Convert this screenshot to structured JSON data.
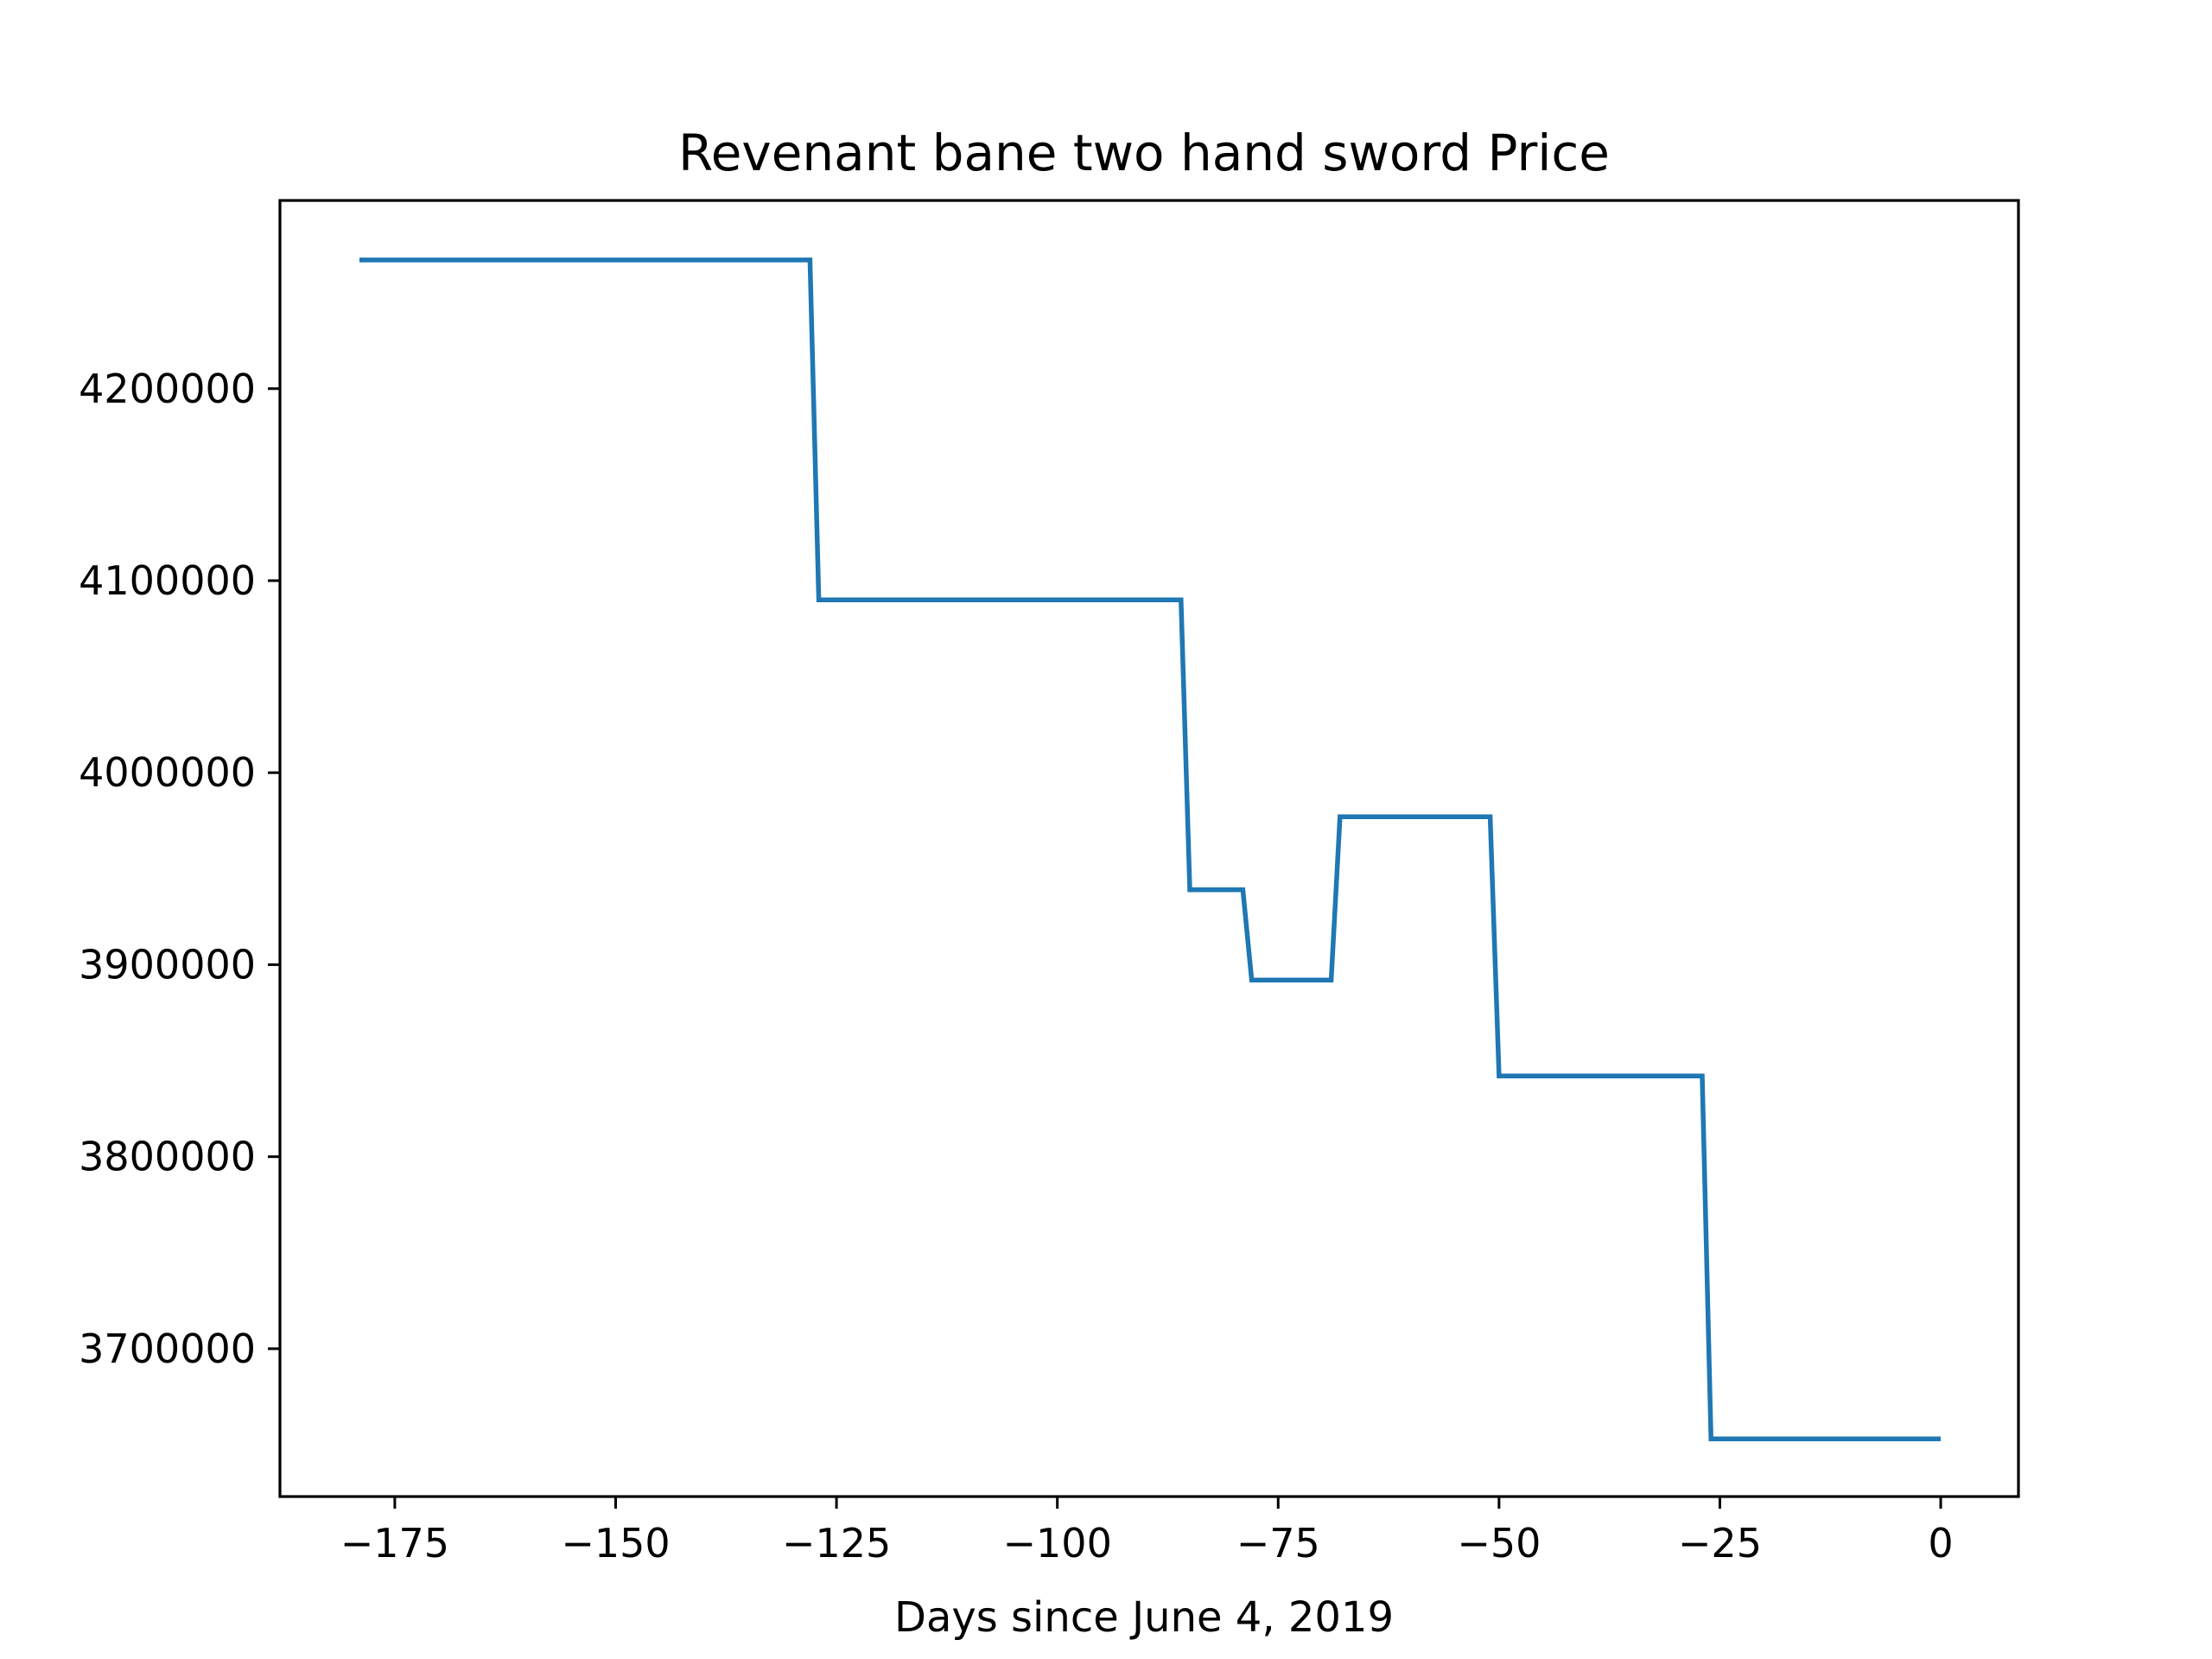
{
  "chart_data": {
    "type": "line",
    "title": "Revenant bane two hand sword Price",
    "xlabel": "Days since June 4, 2019",
    "ylabel": "",
    "xlim": [
      -188,
      8.8
    ],
    "ylim": [
      3623000,
      4298000
    ],
    "x_ticks": [
      -175,
      -150,
      -125,
      -100,
      -75,
      -50,
      -25,
      0
    ],
    "x_tick_labels": [
      "−175",
      "−150",
      "−125",
      "−100",
      "−75",
      "−50",
      "−25",
      "0"
    ],
    "y_ticks": [
      3700000,
      3800000,
      3900000,
      4000000,
      4100000,
      4200000
    ],
    "y_tick_labels": [
      "3700000",
      "3800000",
      "3900000",
      "4000000",
      "4100000",
      "4200000"
    ],
    "grid": false,
    "legend": "none",
    "series": [
      {
        "color": "#1f77b4",
        "x": [
          -179,
          -128,
          -127,
          -86,
          -85,
          -79,
          -78,
          -69,
          -68,
          -51,
          -50,
          -27,
          -26,
          0
        ],
        "y": [
          4267000,
          4267000,
          4090000,
          4090000,
          3939000,
          3939000,
          3892000,
          3892000,
          3977000,
          3977000,
          3842000,
          3842000,
          3653000,
          3653000
        ]
      }
    ]
  }
}
